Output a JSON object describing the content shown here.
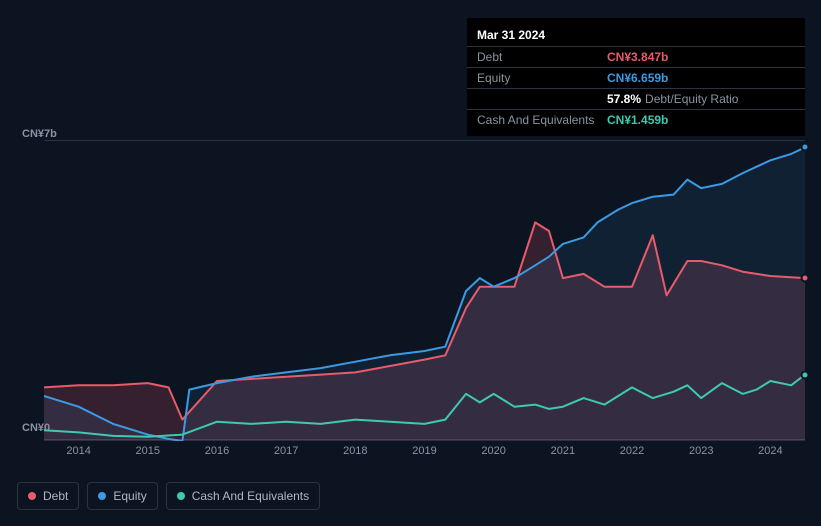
{
  "tooltip": {
    "date": "Mar 31 2024",
    "rows": {
      "debt": {
        "label": "Debt",
        "value": "CN¥3.847b"
      },
      "equity": {
        "label": "Equity",
        "value": "CN¥6.659b"
      },
      "ratio": {
        "pct": "57.8%",
        "label": "Debt/Equity Ratio"
      },
      "cash": {
        "label": "Cash And Equivalents",
        "value": "CN¥1.459b"
      }
    }
  },
  "chart": {
    "type": "area",
    "background": "#0d1421",
    "grid_color": "#2a3442",
    "y_axis": {
      "min": 0,
      "max": 7,
      "unit": "CN¥",
      "suffix": "b",
      "labels": [
        "CN¥7b",
        "CN¥0"
      ]
    },
    "x_axis": {
      "min": 2013.5,
      "max": 2024.5,
      "ticks": [
        2014,
        2015,
        2016,
        2017,
        2018,
        2019,
        2020,
        2021,
        2022,
        2023,
        2024
      ]
    },
    "series": {
      "debt": {
        "label": "Debt",
        "color": "#e85b6b",
        "fill_opacity": 0.18,
        "points": [
          [
            2013.5,
            1.25
          ],
          [
            2014,
            1.3
          ],
          [
            2014.5,
            1.3
          ],
          [
            2015,
            1.35
          ],
          [
            2015.3,
            1.25
          ],
          [
            2015.5,
            0.5
          ],
          [
            2016,
            1.4
          ],
          [
            2016.5,
            1.45
          ],
          [
            2017,
            1.5
          ],
          [
            2017.5,
            1.55
          ],
          [
            2018,
            1.6
          ],
          [
            2018.5,
            1.75
          ],
          [
            2019,
            1.9
          ],
          [
            2019.3,
            2.0
          ],
          [
            2019.6,
            3.1
          ],
          [
            2019.8,
            3.6
          ],
          [
            2020,
            3.6
          ],
          [
            2020.3,
            3.6
          ],
          [
            2020.6,
            5.1
          ],
          [
            2020.8,
            4.9
          ],
          [
            2021,
            3.8
          ],
          [
            2021.3,
            3.9
          ],
          [
            2021.6,
            3.6
          ],
          [
            2021.8,
            3.6
          ],
          [
            2022,
            3.6
          ],
          [
            2022.3,
            4.8
          ],
          [
            2022.5,
            3.4
          ],
          [
            2022.8,
            4.2
          ],
          [
            2023,
            4.2
          ],
          [
            2023.3,
            4.1
          ],
          [
            2023.6,
            3.95
          ],
          [
            2023.8,
            3.9
          ],
          [
            2024,
            3.85
          ],
          [
            2024.5,
            3.8
          ]
        ]
      },
      "equity": {
        "label": "Equity",
        "color": "#3b9ae1",
        "fill_opacity": 0.1,
        "points": [
          [
            2013.5,
            1.05
          ],
          [
            2014,
            0.8
          ],
          [
            2014.5,
            0.4
          ],
          [
            2015,
            0.15
          ],
          [
            2015.3,
            0.05
          ],
          [
            2015.5,
            0.0
          ],
          [
            2015.6,
            1.2
          ],
          [
            2016,
            1.35
          ],
          [
            2016.5,
            1.5
          ],
          [
            2017,
            1.6
          ],
          [
            2017.5,
            1.7
          ],
          [
            2018,
            1.85
          ],
          [
            2018.5,
            2.0
          ],
          [
            2019,
            2.1
          ],
          [
            2019.3,
            2.2
          ],
          [
            2019.6,
            3.5
          ],
          [
            2019.8,
            3.8
          ],
          [
            2020,
            3.6
          ],
          [
            2020.3,
            3.8
          ],
          [
            2020.6,
            4.1
          ],
          [
            2020.8,
            4.3
          ],
          [
            2021,
            4.6
          ],
          [
            2021.3,
            4.75
          ],
          [
            2021.5,
            5.1
          ],
          [
            2021.8,
            5.4
          ],
          [
            2022,
            5.55
          ],
          [
            2022.3,
            5.7
          ],
          [
            2022.6,
            5.75
          ],
          [
            2022.8,
            6.1
          ],
          [
            2023,
            5.9
          ],
          [
            2023.3,
            6.0
          ],
          [
            2023.6,
            6.25
          ],
          [
            2023.8,
            6.4
          ],
          [
            2024,
            6.55
          ],
          [
            2024.3,
            6.7
          ],
          [
            2024.5,
            6.85
          ]
        ]
      },
      "cash": {
        "label": "Cash And Equivalents",
        "color": "#3ec9b0",
        "fill_opacity": 0.0,
        "points": [
          [
            2013.5,
            0.25
          ],
          [
            2014,
            0.2
          ],
          [
            2014.5,
            0.12
          ],
          [
            2015,
            0.1
          ],
          [
            2015.5,
            0.15
          ],
          [
            2016,
            0.45
          ],
          [
            2016.5,
            0.4
          ],
          [
            2017,
            0.45
          ],
          [
            2017.5,
            0.4
          ],
          [
            2018,
            0.5
          ],
          [
            2018.5,
            0.45
          ],
          [
            2019,
            0.4
          ],
          [
            2019.3,
            0.5
          ],
          [
            2019.6,
            1.1
          ],
          [
            2019.8,
            0.9
          ],
          [
            2020,
            1.1
          ],
          [
            2020.3,
            0.8
          ],
          [
            2020.6,
            0.85
          ],
          [
            2020.8,
            0.75
          ],
          [
            2021,
            0.8
          ],
          [
            2021.3,
            1.0
          ],
          [
            2021.6,
            0.85
          ],
          [
            2022,
            1.25
          ],
          [
            2022.3,
            1.0
          ],
          [
            2022.6,
            1.15
          ],
          [
            2022.8,
            1.3
          ],
          [
            2023,
            1.0
          ],
          [
            2023.3,
            1.35
          ],
          [
            2023.6,
            1.1
          ],
          [
            2023.8,
            1.2
          ],
          [
            2024,
            1.4
          ],
          [
            2024.3,
            1.3
          ],
          [
            2024.5,
            1.55
          ]
        ]
      }
    }
  },
  "legend": {
    "items": [
      {
        "key": "debt",
        "label": "Debt",
        "color": "#e85b6b"
      },
      {
        "key": "equity",
        "label": "Equity",
        "color": "#3b9ae1"
      },
      {
        "key": "cash",
        "label": "Cash And Equivalents",
        "color": "#3ec9b0"
      }
    ]
  }
}
